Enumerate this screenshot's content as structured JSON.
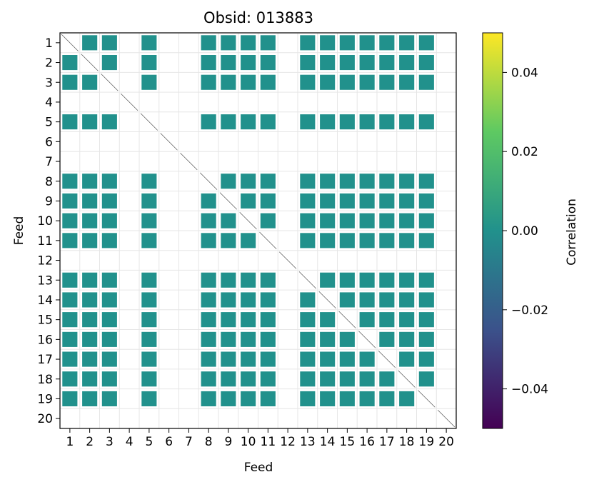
{
  "chart_data": {
    "type": "heatmap",
    "title": "Obsid: 013883",
    "xlabel": "Feed",
    "ylabel": "Feed",
    "x_ticks": [
      "1",
      "2",
      "3",
      "4",
      "5",
      "6",
      "7",
      "8",
      "9",
      "10",
      "11",
      "12",
      "13",
      "14",
      "15",
      "16",
      "17",
      "18",
      "19",
      "20"
    ],
    "y_ticks": [
      "1",
      "2",
      "3",
      "4",
      "5",
      "6",
      "7",
      "8",
      "9",
      "10",
      "11",
      "12",
      "13",
      "14",
      "15",
      "16",
      "17",
      "18",
      "19",
      "20"
    ],
    "grid": true,
    "colorbar": {
      "label": "Correlation",
      "colormap": "viridis",
      "range": [
        -0.05,
        0.05
      ],
      "ticks": [
        "0.04",
        "0.02",
        "0.00",
        "−0.02",
        "−0.04"
      ],
      "tick_values": [
        0.04,
        0.02,
        0.0,
        -0.02,
        -0.04
      ]
    },
    "active_feeds": [
      1,
      2,
      3,
      5,
      8,
      9,
      10,
      11,
      13,
      14,
      15,
      16,
      17,
      18,
      19
    ],
    "inactive_feeds": [
      4,
      6,
      7,
      12,
      20
    ],
    "cell_value": 0.0,
    "cell_color": "#21918c",
    "grid_color": "#e6e6e6"
  }
}
